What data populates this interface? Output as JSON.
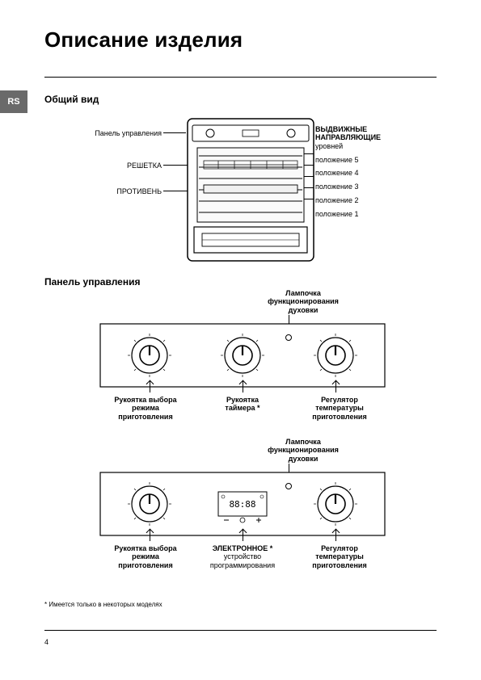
{
  "page_number": "4",
  "language_tab": "RS",
  "title": "Описание изделия",
  "headings": {
    "general": "Общий вид",
    "panel": "Панель управления"
  },
  "oven": {
    "left_labels": {
      "control_panel": "Панель управления",
      "rack": "РЕШЕТКА",
      "tray": "ПРОТИВЕНЬ"
    },
    "right_labels": {
      "guides_line1": "ВЫДВИЖНЫЕ",
      "guides_line2": "НАПРАВЛЯЮЩИЕ",
      "guides_sub": "уровней",
      "pos5": "положение 5",
      "pos4": "положение 4",
      "pos3": "положение 3",
      "pos2": "положение 2",
      "pos1": "положение 1"
    },
    "style": {
      "outer_stroke": "#000",
      "outer_fill": "#fff",
      "inner_fill": "#fafafa",
      "stroke_w": 1.2
    }
  },
  "panel1": {
    "top_label": "Лампочка\nфункционирования\nдуховки",
    "k1": "Рукоятка выбора\nрежима\nприготовления",
    "k2": "Рукоятка\nтаймера",
    "k2_note": " *",
    "k3": "Регулятор\nтемпературы\nприготовления",
    "display": null,
    "style": {
      "border": "#000",
      "fill": "#fff",
      "stroke_w": 1.1
    }
  },
  "panel2": {
    "top_label": "Лампочка\nфункционирования\nдуховки",
    "k1": "Рукоятка выбора\nрежима\nприготовления",
    "k2": "ЭЛЕКТРОННОЕ",
    "k2_note": " *",
    "k2_sub": "устройство\nпрограммирования",
    "k3": "Регулятор\nтемпературы\nприготовления",
    "display": "88:88",
    "style": {
      "border": "#000",
      "fill": "#fff",
      "stroke_w": 1.1
    }
  },
  "footnote": "* Имеется только в некоторых моделях"
}
